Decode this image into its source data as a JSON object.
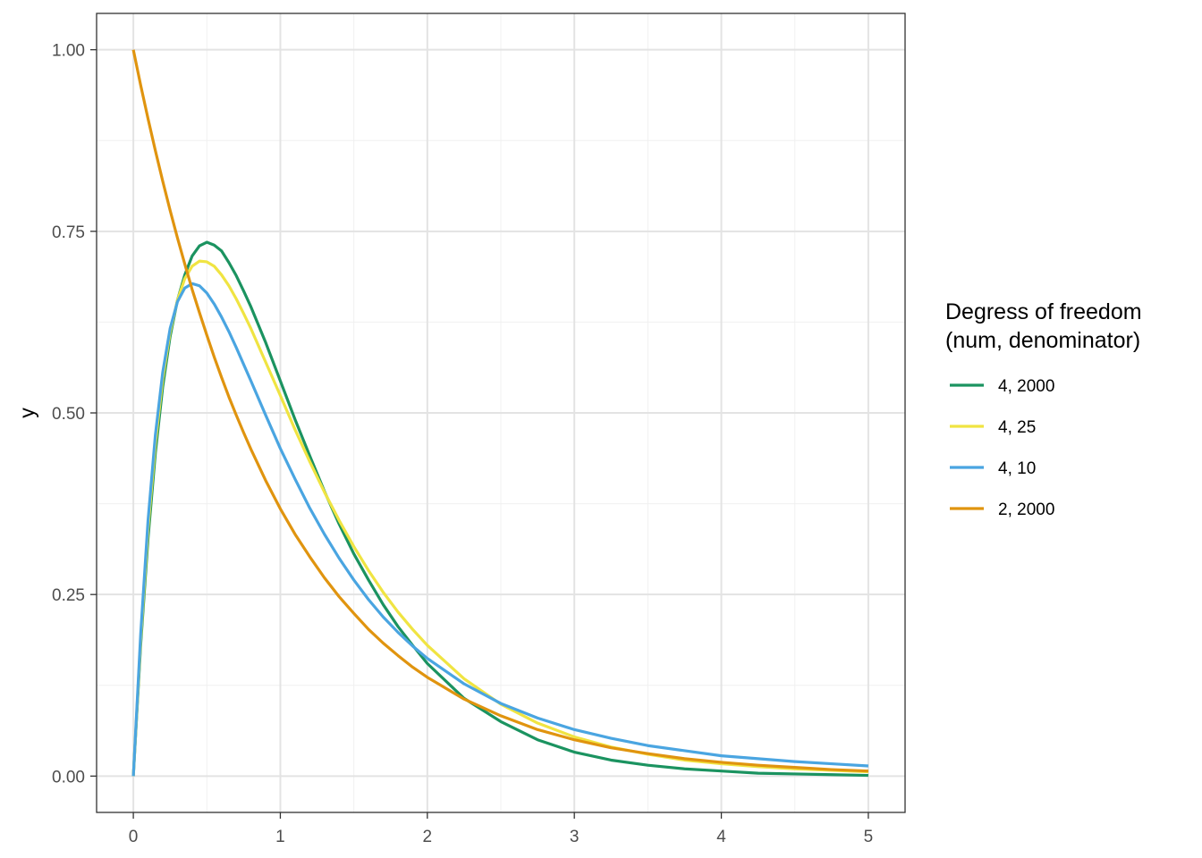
{
  "chart_data": {
    "type": "line",
    "title": "",
    "xlabel": "",
    "ylabel": "y",
    "xlim": [
      -0.25,
      5.25
    ],
    "ylim": [
      -0.05,
      1.05
    ],
    "xticks": [
      0,
      1,
      2,
      3,
      4,
      5
    ],
    "xtick_labels": [
      "0",
      "1",
      "2",
      "3",
      "4",
      "5"
    ],
    "yticks": [
      0,
      0.25,
      0.5,
      0.75,
      1.0
    ],
    "ytick_labels": [
      "0.00",
      "0.25",
      "0.50",
      "0.75",
      "1.00"
    ],
    "grid": true,
    "legend": {
      "title_line1": "Degress of freedom",
      "title_line2": "(num, denominator)",
      "placement": "right"
    },
    "x": [
      0,
      0.05,
      0.1,
      0.15,
      0.2,
      0.25,
      0.3,
      0.35,
      0.4,
      0.45,
      0.5,
      0.55,
      0.6,
      0.65,
      0.7,
      0.75,
      0.8,
      0.9,
      1.0,
      1.1,
      1.2,
      1.3,
      1.4,
      1.5,
      1.6,
      1.7,
      1.8,
      1.9,
      2.0,
      2.25,
      2.5,
      2.75,
      3.0,
      3.25,
      3.5,
      3.75,
      4.0,
      4.25,
      4.5,
      4.75,
      5.0
    ],
    "series": [
      {
        "name": "4, 2000",
        "color": "#1b9360",
        "values": [
          0,
          0.181,
          0.327,
          0.445,
          0.536,
          0.605,
          0.655,
          0.69,
          0.716,
          0.73,
          0.735,
          0.731,
          0.723,
          0.707,
          0.689,
          0.668,
          0.646,
          0.597,
          0.544,
          0.491,
          0.441,
          0.392,
          0.347,
          0.306,
          0.27,
          0.236,
          0.206,
          0.18,
          0.155,
          0.107,
          0.075,
          0.05,
          0.033,
          0.022,
          0.015,
          0.01,
          0.007,
          0.004,
          0.003,
          0.002,
          0.001
        ]
      },
      {
        "name": "4, 25",
        "color": "#f0e442",
        "values": [
          0,
          0.188,
          0.34,
          0.458,
          0.547,
          0.611,
          0.655,
          0.685,
          0.702,
          0.709,
          0.708,
          0.702,
          0.69,
          0.675,
          0.657,
          0.637,
          0.616,
          0.57,
          0.524,
          0.477,
          0.433,
          0.391,
          0.352,
          0.316,
          0.283,
          0.253,
          0.226,
          0.202,
          0.18,
          0.134,
          0.099,
          0.073,
          0.054,
          0.04,
          0.03,
          0.022,
          0.017,
          0.013,
          0.01,
          0.008,
          0.006
        ]
      },
      {
        "name": "4, 10",
        "color": "#4aa5e1",
        "values": [
          0,
          0.196,
          0.352,
          0.47,
          0.556,
          0.616,
          0.653,
          0.672,
          0.678,
          0.675,
          0.665,
          0.65,
          0.632,
          0.612,
          0.59,
          0.567,
          0.544,
          0.497,
          0.451,
          0.409,
          0.369,
          0.333,
          0.3,
          0.27,
          0.243,
          0.219,
          0.198,
          0.179,
          0.162,
          0.127,
          0.1,
          0.08,
          0.064,
          0.052,
          0.042,
          0.035,
          0.028,
          0.024,
          0.02,
          0.017,
          0.014
        ]
      },
      {
        "name": "2, 2000",
        "color": "#e0940f",
        "values": [
          1.0,
          0.951,
          0.905,
          0.861,
          0.819,
          0.779,
          0.741,
          0.705,
          0.67,
          0.638,
          0.607,
          0.577,
          0.549,
          0.522,
          0.497,
          0.473,
          0.45,
          0.407,
          0.368,
          0.333,
          0.302,
          0.273,
          0.247,
          0.224,
          0.202,
          0.183,
          0.166,
          0.15,
          0.136,
          0.106,
          0.083,
          0.064,
          0.05,
          0.039,
          0.031,
          0.024,
          0.019,
          0.015,
          0.012,
          0.009,
          0.007
        ]
      }
    ]
  }
}
